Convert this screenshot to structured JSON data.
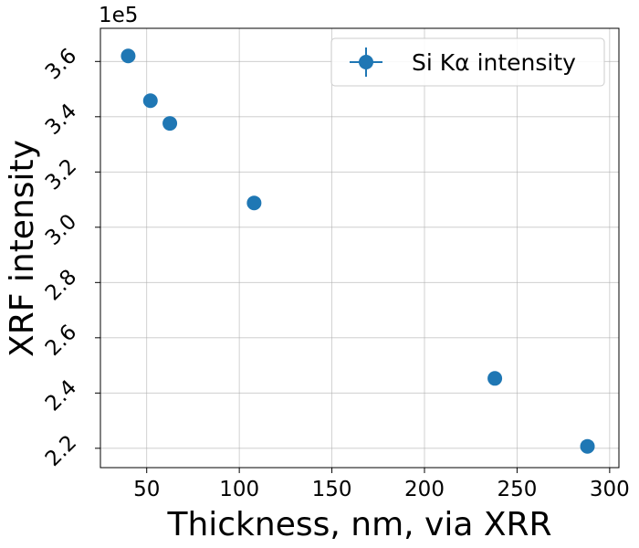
{
  "chart_data": {
    "type": "scatter",
    "xlabel": "Thickness, nm, via XRR",
    "ylabel": "XRF intensity",
    "y_offset_label": "1e5",
    "xlim": [
      25,
      305
    ],
    "ylim": [
      213000,
      372000
    ],
    "x_ticks": [
      50,
      100,
      150,
      200,
      250,
      300
    ],
    "x_tick_labels": [
      "50",
      "100",
      "150",
      "200",
      "250",
      "300"
    ],
    "y_ticks": [
      220000,
      240000,
      260000,
      280000,
      300000,
      320000,
      340000,
      360000
    ],
    "y_tick_labels": [
      "2.2",
      "2.4",
      "2.6",
      "2.8",
      "3.0",
      "3.2",
      "3.4",
      "3.6"
    ],
    "grid": true,
    "legend_position": "top-right",
    "series": [
      {
        "name": "Si Kα intensity",
        "color": "#1f77b4",
        "marker": "circle",
        "x": [
          40,
          52,
          62.5,
          108,
          238,
          288
        ],
        "y": [
          362000,
          345800,
          337600,
          308800,
          245300,
          220700
        ],
        "y_err": [
          0,
          1500,
          0,
          0,
          800,
          0
        ]
      }
    ]
  }
}
